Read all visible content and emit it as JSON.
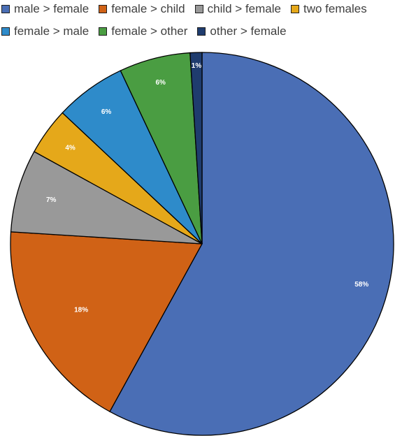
{
  "chart_data": {
    "type": "pie",
    "title": "",
    "legend_position": "top",
    "categories": [
      "male > female",
      "female > child",
      "child > female",
      "two females",
      "female > male",
      "female > other",
      "other > female"
    ],
    "values": [
      58,
      18,
      7,
      4,
      6,
      6,
      1
    ],
    "labels": [
      "58%",
      "18%",
      "7%",
      "4%",
      "6%",
      "6%",
      "1%"
    ],
    "colors": [
      "#4a6eb5",
      "#d06216",
      "#999999",
      "#e5a81a",
      "#2e8bca",
      "#4a9d42",
      "#1f3c6e"
    ]
  }
}
